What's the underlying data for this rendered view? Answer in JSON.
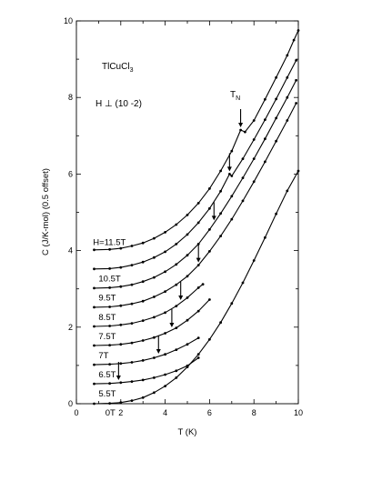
{
  "chart_data": {
    "type": "scatter",
    "xlabel": "T (K)",
    "ylabel": "C (J/K-mol) (0.5 offset)",
    "xlim": [
      0,
      10
    ],
    "ylim": [
      0,
      10
    ],
    "x_ticks": [
      "0",
      "2",
      "4",
      "6",
      "8",
      "10"
    ],
    "y_ticks": [
      "0",
      "2",
      "4",
      "6",
      "8",
      "10"
    ],
    "grid": false,
    "annotations": {
      "compound": "TlCuCl",
      "compound_sub": "3",
      "field_direction": "H ⊥ (10 -2)",
      "tn_label": "T",
      "tn_sub": "N"
    },
    "series": [
      {
        "name": "0T",
        "offset": 0.0,
        "tn": null,
        "points": [
          [
            0.8,
            0.0
          ],
          [
            1.5,
            0.01
          ],
          [
            2.0,
            0.03
          ],
          [
            2.5,
            0.08
          ],
          [
            3.0,
            0.16
          ],
          [
            3.5,
            0.29
          ],
          [
            4.0,
            0.46
          ],
          [
            4.5,
            0.68
          ],
          [
            5.0,
            0.96
          ],
          [
            5.5,
            1.29
          ],
          [
            6.0,
            1.68
          ],
          [
            6.5,
            2.12
          ],
          [
            7.0,
            2.62
          ],
          [
            7.5,
            3.16
          ],
          [
            8.0,
            3.74
          ],
          [
            8.5,
            4.34
          ],
          [
            9.0,
            4.96
          ],
          [
            9.5,
            5.56
          ],
          [
            10.0,
            6.08
          ]
        ]
      },
      {
        "name": "5.5T",
        "offset": 0.5,
        "tn": 1.9,
        "points": [
          [
            0.8,
            0.52
          ],
          [
            1.5,
            0.53
          ],
          [
            2.0,
            0.55
          ],
          [
            2.5,
            0.58
          ],
          [
            3.0,
            0.62
          ],
          [
            3.5,
            0.68
          ],
          [
            4.0,
            0.76
          ],
          [
            4.5,
            0.86
          ],
          [
            5.0,
            0.99
          ],
          [
            5.5,
            1.2
          ]
        ]
      },
      {
        "name": "6.5T",
        "offset": 1.0,
        "tn": 3.7,
        "points": [
          [
            0.8,
            1.02
          ],
          [
            1.5,
            1.03
          ],
          [
            2.0,
            1.05
          ],
          [
            2.5,
            1.08
          ],
          [
            3.0,
            1.13
          ],
          [
            3.5,
            1.2
          ],
          [
            4.0,
            1.29
          ],
          [
            4.5,
            1.41
          ],
          [
            5.0,
            1.55
          ],
          [
            5.5,
            1.72
          ]
        ]
      },
      {
        "name": "7T",
        "offset": 1.5,
        "tn": 4.3,
        "points": [
          [
            0.8,
            1.52
          ],
          [
            1.5,
            1.53
          ],
          [
            2.0,
            1.55
          ],
          [
            2.5,
            1.59
          ],
          [
            3.0,
            1.65
          ],
          [
            3.5,
            1.73
          ],
          [
            4.0,
            1.84
          ],
          [
            4.5,
            1.98
          ],
          [
            5.0,
            2.18
          ],
          [
            5.5,
            2.42
          ],
          [
            6.0,
            2.72
          ]
        ]
      },
      {
        "name": "7.5T",
        "offset": 2.0,
        "tn": 4.7,
        "points": [
          [
            0.8,
            2.02
          ],
          [
            1.5,
            2.03
          ],
          [
            2.0,
            2.06
          ],
          [
            2.5,
            2.1
          ],
          [
            3.0,
            2.17
          ],
          [
            3.5,
            2.26
          ],
          [
            4.0,
            2.38
          ],
          [
            4.5,
            2.55
          ],
          [
            5.0,
            2.77
          ],
          [
            5.5,
            3.03
          ],
          [
            5.7,
            3.12
          ]
        ]
      },
      {
        "name": "8.5T",
        "offset": 2.5,
        "tn": 5.5,
        "points": [
          [
            0.8,
            2.52
          ],
          [
            1.5,
            2.53
          ],
          [
            2.0,
            2.56
          ],
          [
            2.5,
            2.61
          ],
          [
            3.0,
            2.68
          ],
          [
            3.5,
            2.79
          ],
          [
            4.0,
            2.93
          ],
          [
            4.5,
            3.11
          ],
          [
            5.0,
            3.33
          ],
          [
            5.5,
            3.62
          ],
          [
            6.0,
            3.98
          ],
          [
            6.5,
            4.38
          ],
          [
            7.0,
            4.82
          ],
          [
            7.5,
            5.3
          ],
          [
            8.0,
            5.8
          ],
          [
            8.5,
            6.32
          ],
          [
            9.0,
            6.86
          ],
          [
            9.5,
            7.4
          ],
          [
            9.9,
            7.85
          ]
        ]
      },
      {
        "name": "9.5T",
        "offset": 3.0,
        "tn": 6.2,
        "points": [
          [
            0.8,
            3.02
          ],
          [
            1.5,
            3.03
          ],
          [
            2.0,
            3.06
          ],
          [
            2.5,
            3.11
          ],
          [
            3.0,
            3.19
          ],
          [
            3.5,
            3.3
          ],
          [
            4.0,
            3.45
          ],
          [
            4.5,
            3.64
          ],
          [
            5.0,
            3.88
          ],
          [
            5.5,
            4.17
          ],
          [
            6.0,
            4.55
          ],
          [
            6.5,
            4.97
          ],
          [
            7.0,
            5.42
          ],
          [
            7.5,
            5.9
          ],
          [
            8.0,
            6.4
          ],
          [
            8.5,
            6.92
          ],
          [
            9.0,
            7.46
          ],
          [
            9.5,
            8.0
          ],
          [
            9.9,
            8.45
          ]
        ]
      },
      {
        "name": "10.5T",
        "offset": 3.5,
        "tn": 6.9,
        "points": [
          [
            0.8,
            3.52
          ],
          [
            1.5,
            3.53
          ],
          [
            2.0,
            3.56
          ],
          [
            2.5,
            3.62
          ],
          [
            3.0,
            3.7
          ],
          [
            3.5,
            3.82
          ],
          [
            4.0,
            3.97
          ],
          [
            4.5,
            4.17
          ],
          [
            5.0,
            4.42
          ],
          [
            5.5,
            4.73
          ],
          [
            6.0,
            5.1
          ],
          [
            6.5,
            5.55
          ],
          [
            6.9,
            6.0
          ],
          [
            7.0,
            5.95
          ],
          [
            7.5,
            6.4
          ],
          [
            8.0,
            6.9
          ],
          [
            8.5,
            7.42
          ],
          [
            9.0,
            7.96
          ],
          [
            9.5,
            8.52
          ],
          [
            9.9,
            8.97
          ]
        ]
      },
      {
        "name": "H=11.5T",
        "offset": 4.0,
        "tn": 7.4,
        "points": [
          [
            0.8,
            4.02
          ],
          [
            1.5,
            4.03
          ],
          [
            2.0,
            4.06
          ],
          [
            2.5,
            4.12
          ],
          [
            3.0,
            4.2
          ],
          [
            3.5,
            4.32
          ],
          [
            4.0,
            4.48
          ],
          [
            4.5,
            4.68
          ],
          [
            5.0,
            4.93
          ],
          [
            5.5,
            5.24
          ],
          [
            6.0,
            5.62
          ],
          [
            6.5,
            6.08
          ],
          [
            7.0,
            6.6
          ],
          [
            7.4,
            7.15
          ],
          [
            7.6,
            7.1
          ],
          [
            8.0,
            7.4
          ],
          [
            8.5,
            7.95
          ],
          [
            9.0,
            8.52
          ],
          [
            9.5,
            9.1
          ],
          [
            9.8,
            9.5
          ],
          [
            10.0,
            9.75
          ]
        ]
      }
    ]
  }
}
